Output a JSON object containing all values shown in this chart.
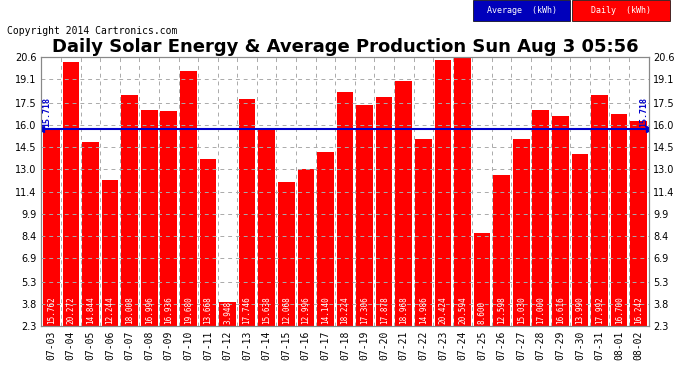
{
  "title": "Daily Solar Energy & Average Production Sun Aug 3 05:56",
  "copyright": "Copyright 2014 Cartronics.com",
  "average_value": 15.718,
  "average_label": "15.718",
  "categories": [
    "07-03",
    "07-04",
    "07-05",
    "07-06",
    "07-07",
    "07-08",
    "07-09",
    "07-10",
    "07-11",
    "07-12",
    "07-13",
    "07-14",
    "07-15",
    "07-16",
    "07-17",
    "07-18",
    "07-19",
    "07-20",
    "07-21",
    "07-22",
    "07-23",
    "07-24",
    "07-25",
    "07-26",
    "07-27",
    "07-28",
    "07-29",
    "07-30",
    "07-31",
    "08-01",
    "08-02"
  ],
  "values": [
    15.762,
    20.272,
    14.844,
    12.244,
    18.008,
    16.996,
    16.936,
    19.68,
    13.668,
    3.948,
    17.746,
    15.638,
    12.068,
    12.996,
    14.14,
    18.224,
    17.306,
    17.878,
    18.968,
    14.986,
    20.424,
    20.594,
    8.6,
    12.598,
    15.03,
    17.0,
    16.616,
    13.99,
    17.992,
    16.7,
    16.242
  ],
  "bar_color": "#ff0000",
  "avg_line_color": "#0000cc",
  "background_color": "#ffffff",
  "grid_color": "#aaaaaa",
  "ylim": [
    2.3,
    20.6
  ],
  "yticks": [
    2.3,
    3.8,
    5.3,
    6.9,
    8.4,
    9.9,
    11.4,
    13.0,
    14.5,
    16.0,
    17.5,
    19.1,
    20.6
  ],
  "title_fontsize": 13,
  "copyright_fontsize": 7,
  "tick_fontsize": 7,
  "value_fontsize": 5.5,
  "legend_avg_bg": "#0000bb",
  "legend_daily_bg": "#ff0000",
  "legend_avg_text": "Average  (kWh)",
  "legend_daily_text": "Daily  (kWh)"
}
